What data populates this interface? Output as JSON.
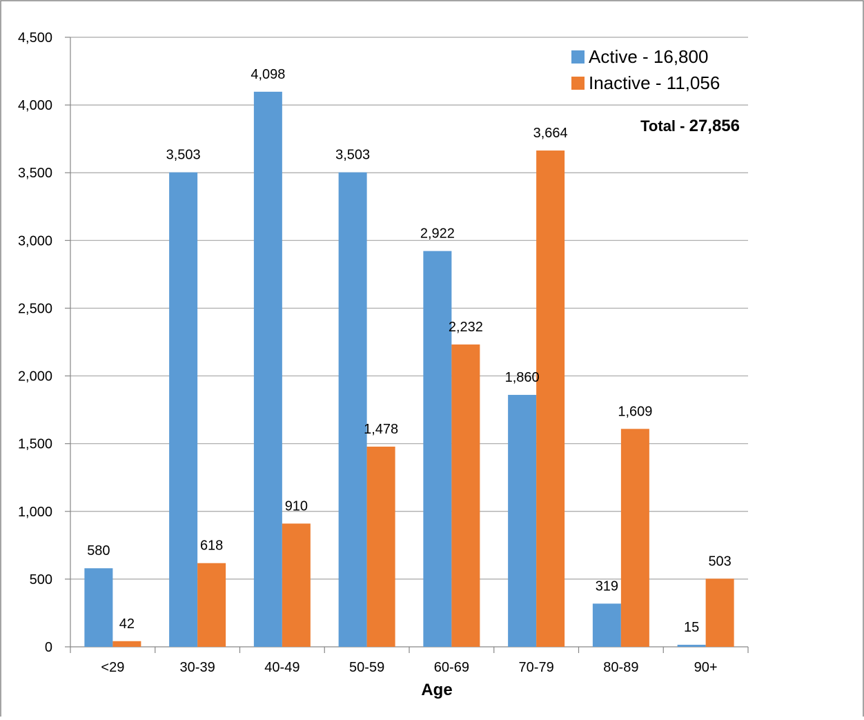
{
  "chart_data": {
    "type": "bar",
    "categories": [
      "<29",
      "30-39",
      "40-49",
      "50-59",
      "60-69",
      "70-79",
      "80-89",
      "90+"
    ],
    "series": [
      {
        "name": "Active - 16,800",
        "values": [
          580,
          3503,
          4098,
          3503,
          2922,
          1860,
          319,
          15
        ],
        "color": "#5B9BD5"
      },
      {
        "name": "Inactive - 11,056",
        "values": [
          42,
          618,
          910,
          1478,
          2232,
          3664,
          1609,
          503
        ],
        "color": "#ED7D31"
      }
    ],
    "data_labels": [
      [
        "580",
        "3,503",
        "4,098",
        "3,503",
        "2,922",
        "1,860",
        "319",
        "15"
      ],
      [
        "42",
        "618",
        "910",
        "1,478",
        "2,232",
        "3,664",
        "1,609",
        "503"
      ]
    ],
    "title": "",
    "xlabel": "Age",
    "ylabel": "",
    "ylim": [
      0,
      4500
    ],
    "yticks": [
      0,
      500,
      1000,
      1500,
      2000,
      2500,
      3000,
      3500,
      4000,
      4500
    ],
    "ytick_labels": [
      "0",
      "500",
      "1,000",
      "1,500",
      "2,000",
      "2,500",
      "3,000",
      "3,500",
      "4,000",
      "4,500"
    ],
    "grid": true,
    "legend_position": "top-right",
    "annotation": {
      "prefix": "Total - ",
      "value": "27,856"
    },
    "gridline_color": "#A6A6A6",
    "border_color": "#868686"
  }
}
